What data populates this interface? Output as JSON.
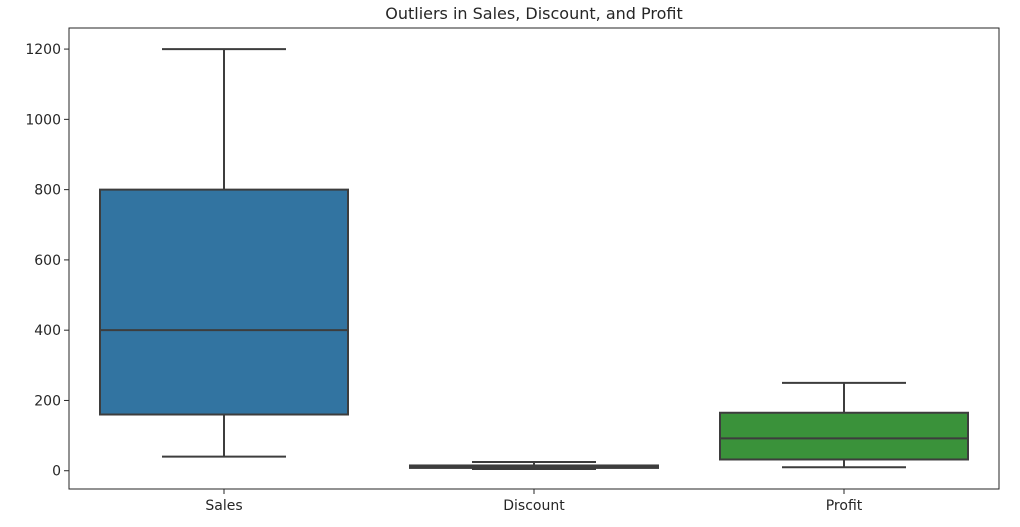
{
  "chart_data": {
    "type": "box",
    "title": "Outliers in Sales, Discount, and Profit",
    "xlabel": "",
    "ylabel": "",
    "categories": [
      "Sales",
      "Discount",
      "Profit"
    ],
    "boxes": [
      {
        "name": "Sales",
        "min": 40,
        "q1": 160,
        "median": 400,
        "q3": 800,
        "max": 1200,
        "color": "#3274a1"
      },
      {
        "name": "Discount",
        "min": 5,
        "q1": 8,
        "median": 12,
        "q3": 15,
        "max": 25,
        "color": "#e1812c"
      },
      {
        "name": "Profit",
        "min": 10,
        "q1": 32,
        "median": 92,
        "q3": 165,
        "max": 250,
        "color": "#3a923a"
      }
    ],
    "yticks": [
      0,
      200,
      400,
      600,
      800,
      1000,
      1200
    ],
    "ylim": [
      -52,
      1260
    ],
    "grid": false,
    "legend": "none"
  }
}
